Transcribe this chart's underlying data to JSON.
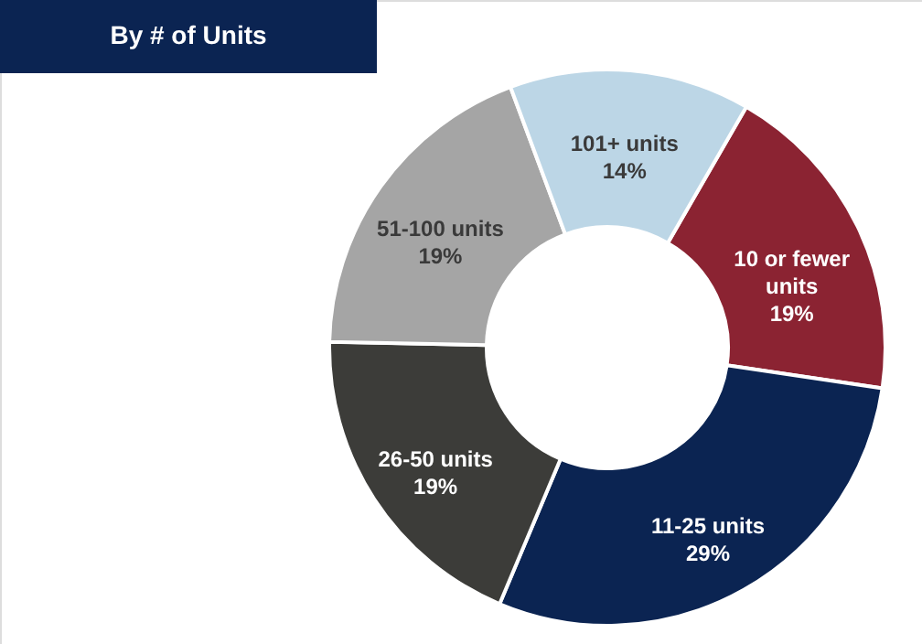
{
  "chart_data": {
    "type": "donut",
    "title": "By # of Units",
    "categories": [
      "10 or fewer units",
      "11-25 units",
      "26-50 units",
      "51-100 units",
      "101+ units"
    ],
    "values": [
      19,
      29,
      19,
      19,
      14
    ],
    "colors": [
      "#8b2332",
      "#0b2452",
      "#3c3c39",
      "#a5a5a5",
      "#bcd6e6"
    ],
    "value_labels": [
      "19%",
      "29%",
      "19%",
      "19%",
      "14%"
    ]
  }
}
